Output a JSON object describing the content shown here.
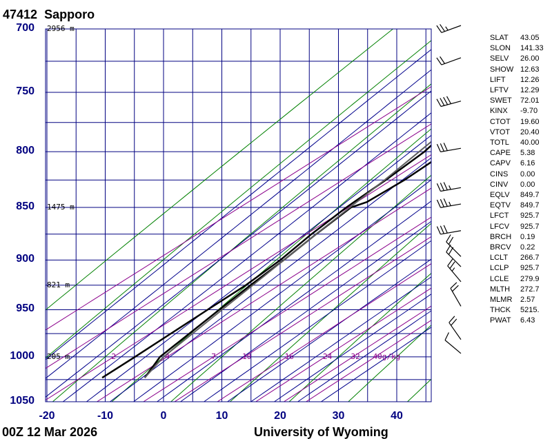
{
  "header": {
    "station_id": "47412",
    "station_name": "Sapporo"
  },
  "footer": {
    "time": "00Z 12 Mar 2026",
    "source": "University of Wyoming"
  },
  "chart_data": {
    "type": "skew-t",
    "title": "47412  Sapporo",
    "x_axis": {
      "unit": "°C",
      "ticks": [
        -20,
        -10,
        0,
        10,
        20,
        30,
        40
      ],
      "range": [
        -20,
        46
      ]
    },
    "y_axis": {
      "unit": "hPa",
      "scale": "log",
      "ticks": [
        700,
        750,
        800,
        850,
        900,
        950,
        1000,
        1050
      ],
      "range": [
        700,
        1050
      ]
    },
    "grid": true,
    "height_labels": [
      {
        "p": 700,
        "label": "2956 m"
      },
      {
        "p": 850,
        "label": "1475 m"
      },
      {
        "p": 925,
        "label": "821 m"
      },
      {
        "p": 1000,
        "label": "205 m"
      }
    ],
    "mixing_ratio_labels": [
      "2",
      "4",
      "7",
      "10",
      "16",
      "24",
      "32",
      "40g/kg"
    ],
    "mixing_ratio_values": [
      2,
      4,
      7,
      10,
      16,
      24,
      32,
      40
    ],
    "series": [
      {
        "role": "temperature",
        "color": "#000000",
        "points": [
          [
            1023,
            2.7
          ],
          [
            1000,
            -0.6
          ],
          [
            950,
            -3.8
          ],
          [
            925,
            -5.4
          ],
          [
            900,
            -6.8
          ],
          [
            875,
            -8.6
          ],
          [
            850,
            -10.2
          ],
          [
            845,
            -9.0
          ],
          [
            825,
            -8.8
          ],
          [
            800,
            -9.6
          ],
          [
            780,
            -10.4
          ],
          [
            764,
            -11.0
          ],
          [
            750,
            -12.0
          ],
          [
            700,
            -11.0
          ]
        ]
      },
      {
        "role": "dewpoint",
        "color": "#000000",
        "points": [
          [
            1023,
            -4.6
          ],
          [
            1000,
            -4.9
          ],
          [
            950,
            -5.8
          ],
          [
            925,
            -6.2
          ],
          [
            900,
            -7.4
          ],
          [
            875,
            -9.4
          ],
          [
            850,
            -11.0
          ],
          [
            825,
            -12.0
          ],
          [
            800,
            -13.4
          ],
          [
            780,
            -15.6
          ],
          [
            776,
            -18.5
          ]
        ]
      },
      {
        "role": "parcel",
        "color": "#5f5f5f",
        "points": [
          [
            1023,
            2.7
          ],
          [
            1000,
            0.0
          ],
          [
            950,
            -3.3
          ],
          [
            925,
            -5.0
          ],
          [
            900,
            -6.8
          ],
          [
            875,
            -8.6
          ],
          [
            850,
            -10.4
          ],
          [
            825,
            -12.2
          ],
          [
            800,
            -14.3
          ],
          [
            775,
            -16.5
          ],
          [
            750,
            -18.8
          ],
          [
            732,
            -20.0
          ]
        ]
      }
    ],
    "wind_barbs": [
      {
        "p": 700,
        "dir_deg": 250,
        "speed_kt": 25
      },
      {
        "p": 725,
        "dir_deg": 250,
        "speed_kt": 20
      },
      {
        "p": 760,
        "dir_deg": 255,
        "speed_kt": 40
      },
      {
        "p": 800,
        "dir_deg": 260,
        "speed_kt": 30
      },
      {
        "p": 835,
        "dir_deg": 260,
        "speed_kt": 35
      },
      {
        "p": 850,
        "dir_deg": 260,
        "speed_kt": 35
      },
      {
        "p": 875,
        "dir_deg": 260,
        "speed_kt": 30
      },
      {
        "p": 900,
        "dir_deg": 315,
        "speed_kt": 20
      },
      {
        "p": 910,
        "dir_deg": 315,
        "speed_kt": 20
      },
      {
        "p": 925,
        "dir_deg": 320,
        "speed_kt": 25
      },
      {
        "p": 950,
        "dir_deg": 330,
        "speed_kt": 20
      },
      {
        "p": 985,
        "dir_deg": 325,
        "speed_kt": 20
      },
      {
        "p": 1000,
        "dir_deg": 310,
        "speed_kt": 10
      }
    ]
  },
  "indices": [
    {
      "key": "SLAT",
      "value": "43.05"
    },
    {
      "key": "SLON",
      "value": "141.33"
    },
    {
      "key": "SELV",
      "value": "26.00"
    },
    {
      "key": "SHOW",
      "value": "12.63"
    },
    {
      "key": "LIFT",
      "value": "12.26"
    },
    {
      "key": "LFTV",
      "value": "12.29"
    },
    {
      "key": "SWET",
      "value": "72.01"
    },
    {
      "key": "KINX",
      "value": "-9.70"
    },
    {
      "key": "CTOT",
      "value": "19.60"
    },
    {
      "key": "VTOT",
      "value": "20.40"
    },
    {
      "key": "TOTL",
      "value": "40.00"
    },
    {
      "key": "CAPE",
      "value": "5.38"
    },
    {
      "key": "CAPV",
      "value": "6.16"
    },
    {
      "key": "CINS",
      "value": "0.00"
    },
    {
      "key": "CINV",
      "value": "0.00"
    },
    {
      "key": "EQLV",
      "value": "849.7"
    },
    {
      "key": "EQTV",
      "value": "849.7"
    },
    {
      "key": "LFCT",
      "value": "925.7"
    },
    {
      "key": "LFCV",
      "value": "925.7"
    },
    {
      "key": "BRCH",
      "value": "0.19"
    },
    {
      "key": "BRCV",
      "value": "0.22"
    },
    {
      "key": "LCLT",
      "value": "266.7"
    },
    {
      "key": "LCLP",
      "value": "925.7"
    },
    {
      "key": "LCLE",
      "value": "279.9"
    },
    {
      "key": "MLTH",
      "value": "272.7"
    },
    {
      "key": "MLMR",
      "value": "2.57"
    },
    {
      "key": "THCK",
      "value": "5215."
    },
    {
      "key": "PWAT",
      "value": "6.43"
    }
  ],
  "colors": {
    "isotherm": "#000080",
    "dry_adiabat": "#008000",
    "moist_adiabat": "#00008b",
    "mixing_ratio": "#8b008b",
    "trace": "#000000",
    "parcel": "#5f5f5f"
  }
}
